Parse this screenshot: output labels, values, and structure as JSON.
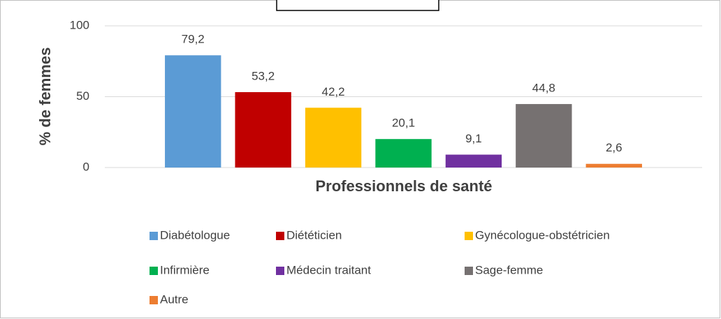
{
  "chart_data": {
    "type": "bar",
    "y_label": "% de femmes",
    "x_label": "Professionnels de santé",
    "categories": [
      "Diabétologue",
      "Diététicien",
      "Gynécologue-obstétricien",
      "Infirmière",
      "Médecin traitant",
      "Sage-femme",
      "Autre"
    ],
    "values": [
      79.2,
      53.2,
      42.2,
      20.1,
      9.1,
      44.8,
      2.6
    ],
    "value_labels": [
      "79,2",
      "53,2",
      "42,2",
      "20,1",
      "9,1",
      "44,8",
      "2,6"
    ],
    "colors": [
      "#5b9bd5",
      "#c00000",
      "#ffc000",
      "#00b050",
      "#7030a0",
      "#767171",
      "#ed7d31"
    ],
    "ylim": [
      0,
      100
    ],
    "yticks": [
      0,
      50,
      100
    ],
    "grid": true,
    "legend": "bottom"
  }
}
